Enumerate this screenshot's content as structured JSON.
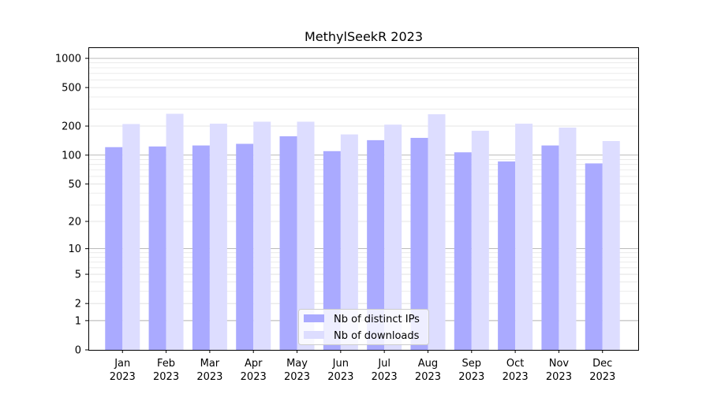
{
  "chart_data": {
    "type": "bar",
    "title": "MethylSeekR 2023",
    "xlabel": "",
    "ylabel": "",
    "y_scale": "symlog",
    "ylim": [
      0,
      1300
    ],
    "yticks": [
      0,
      1,
      2,
      5,
      10,
      20,
      50,
      100,
      200,
      500,
      1000
    ],
    "grid": true,
    "legend_position": "bottom-center",
    "categories": [
      [
        "Jan",
        "2023"
      ],
      [
        "Feb",
        "2023"
      ],
      [
        "Mar",
        "2023"
      ],
      [
        "Apr",
        "2023"
      ],
      [
        "May",
        "2023"
      ],
      [
        "Jun",
        "2023"
      ],
      [
        "Jul",
        "2023"
      ],
      [
        "Aug",
        "2023"
      ],
      [
        "Sep",
        "2023"
      ],
      [
        "Oct",
        "2023"
      ],
      [
        "Nov",
        "2023"
      ],
      [
        "Dec",
        "2023"
      ]
    ],
    "series": [
      {
        "name": "Nb of distinct IPs",
        "color": "#aaaaff",
        "values": [
          121,
          123,
          126,
          131,
          157,
          110,
          143,
          151,
          107,
          86,
          126,
          82
        ]
      },
      {
        "name": "Nb of downloads",
        "color": "#ddddff",
        "values": [
          210,
          268,
          212,
          222,
          222,
          164,
          207,
          265,
          179,
          212,
          193,
          140
        ]
      }
    ]
  }
}
